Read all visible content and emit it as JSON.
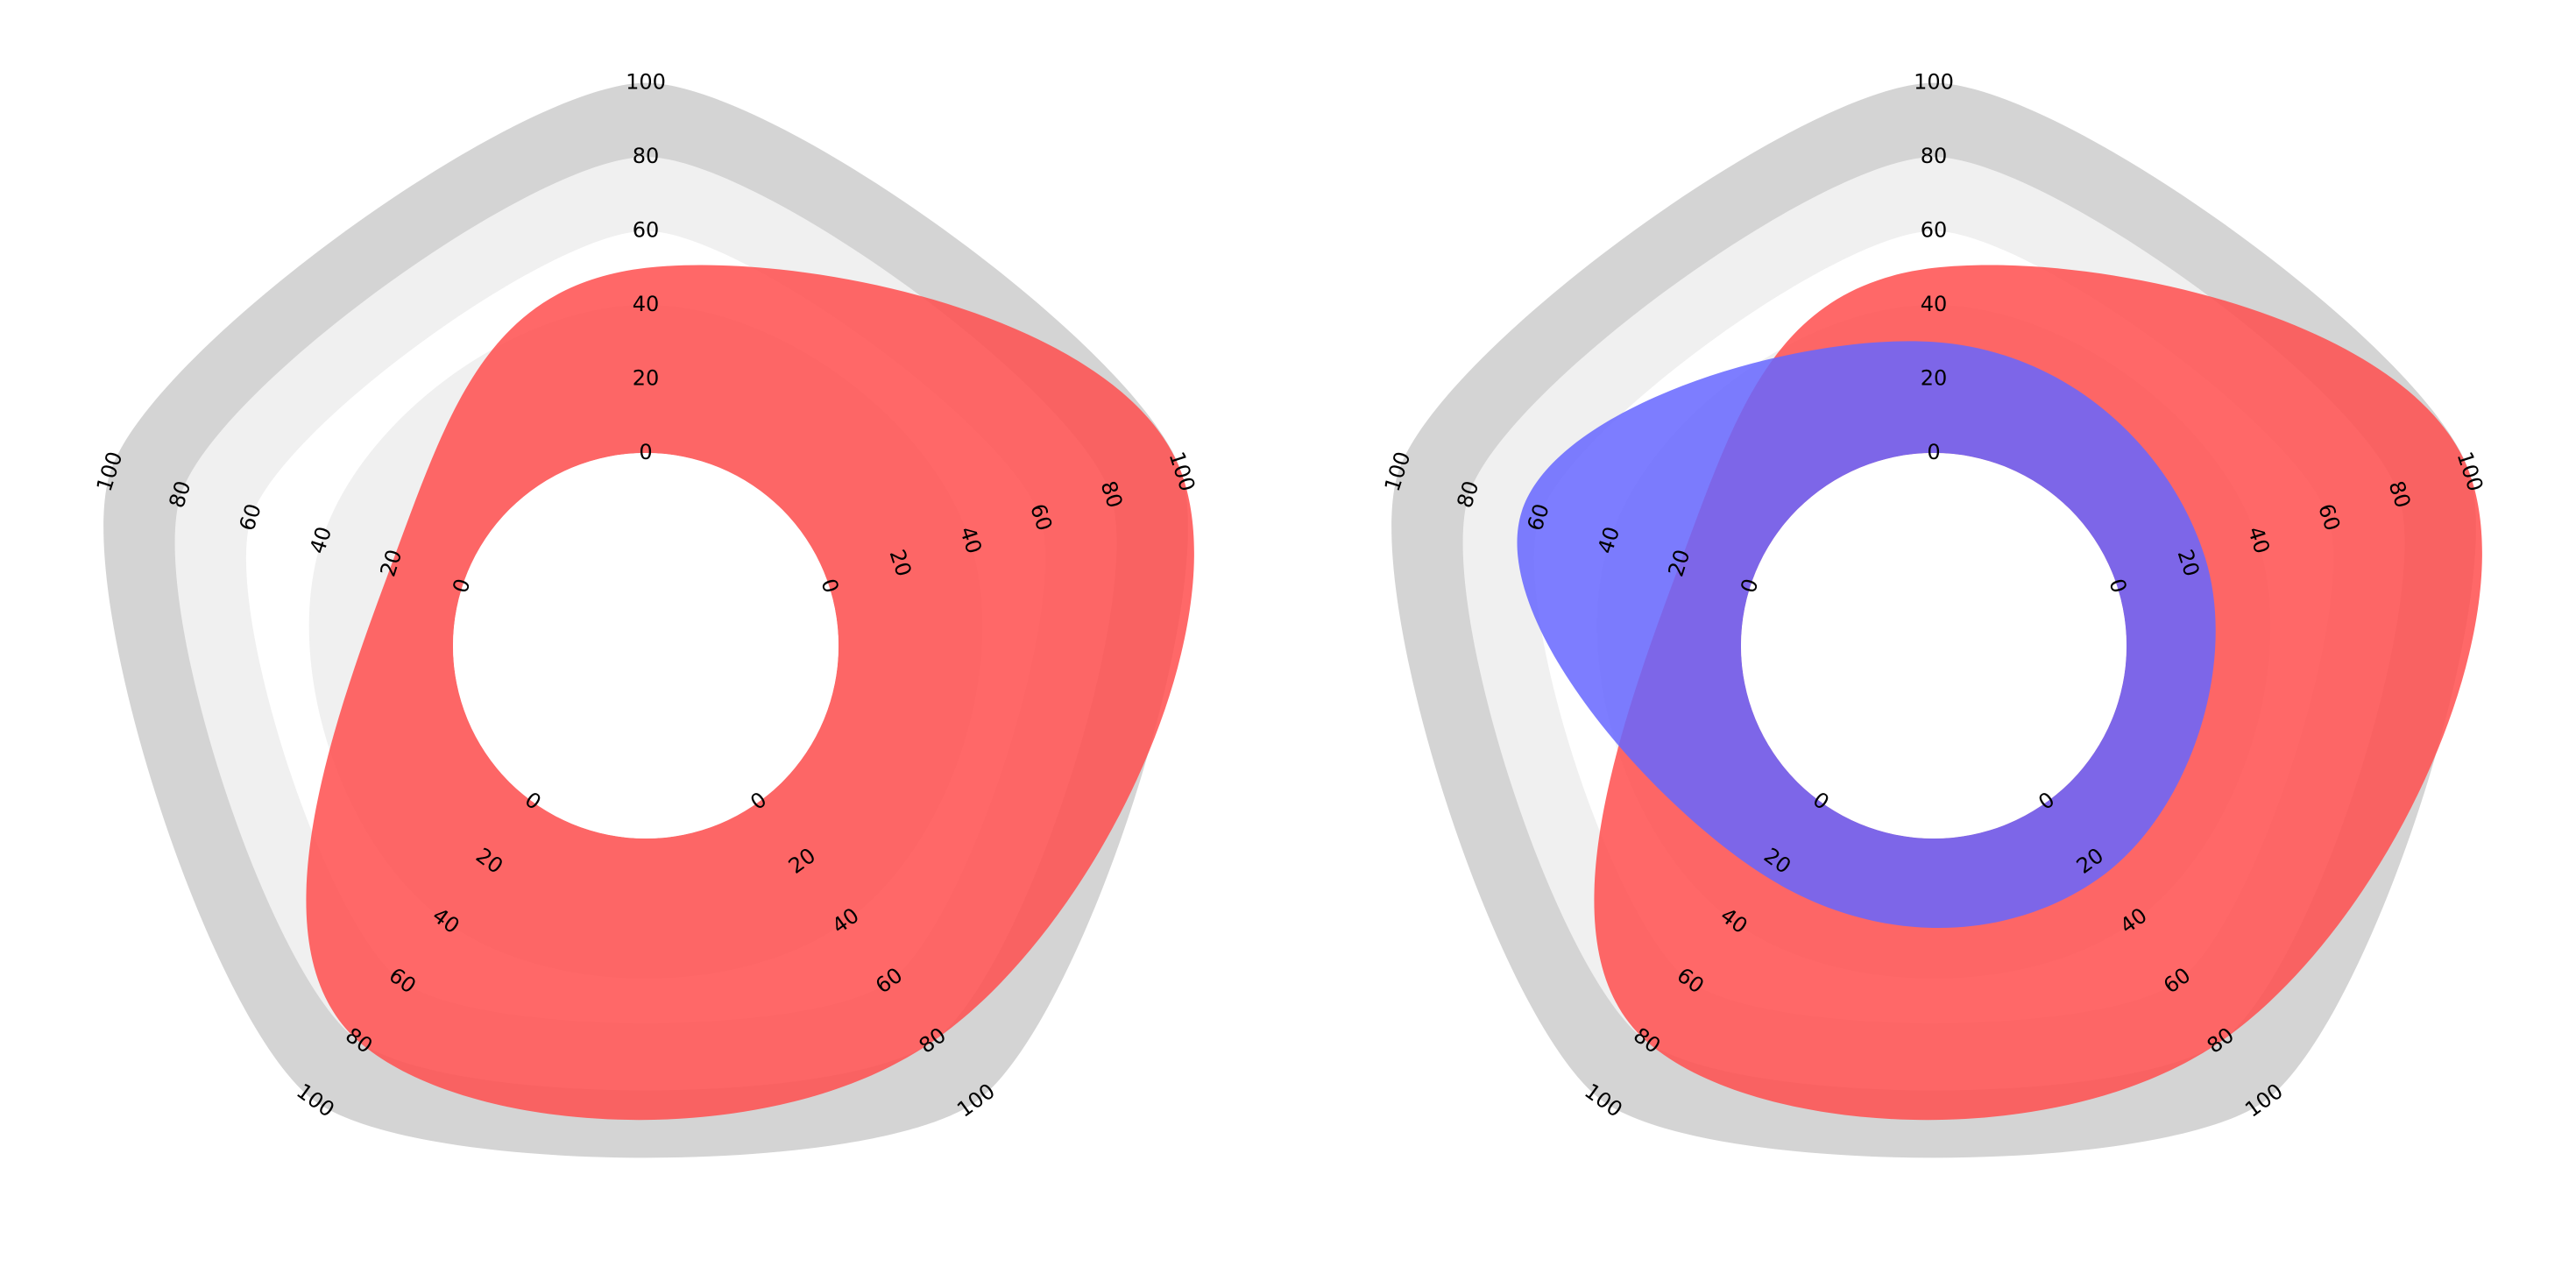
{
  "chart_data": [
    {
      "type": "radar",
      "axes": 5,
      "rlim": [
        0,
        100
      ],
      "ticks": [
        0,
        20,
        40,
        60,
        80,
        100
      ],
      "axis_tick_labels": [
        [
          "0",
          "20",
          "40",
          "60",
          "80",
          "100"
        ],
        [
          "0",
          "20",
          "40",
          "60",
          "80",
          "100"
        ],
        [
          "0",
          "20",
          "40",
          "60",
          "80",
          "100"
        ],
        [
          "0",
          "20",
          "40",
          "60",
          "80",
          "100"
        ],
        [
          "0",
          "20",
          "40",
          "60",
          "80",
          "100"
        ]
      ],
      "background_bands": {
        "colors": [
          "#ffffff",
          "#f0f0f0",
          "#d4d4d4"
        ]
      },
      "series": [
        {
          "values": [
            50,
            100,
            80,
            80,
            20
          ],
          "color": "#ff4d4d"
        }
      ]
    },
    {
      "type": "radar",
      "axes": 5,
      "rlim": [
        0,
        100
      ],
      "ticks": [
        0,
        20,
        40,
        60,
        80,
        100
      ],
      "axis_tick_labels": [
        [
          "0",
          "20",
          "40",
          "60",
          "80",
          "100"
        ],
        [
          "0",
          "20",
          "40",
          "60",
          "80",
          "100"
        ],
        [
          "0",
          "20",
          "40",
          "60",
          "80",
          "100"
        ],
        [
          "0",
          "20",
          "40",
          "60",
          "80",
          "100"
        ],
        [
          "0",
          "20",
          "40",
          "60",
          "80",
          "100"
        ]
      ],
      "background_bands": {
        "colors": [
          "#ffffff",
          "#f0f0f0",
          "#d4d4d4"
        ]
      },
      "series": [
        {
          "values": [
            50,
            100,
            80,
            80,
            20
          ],
          "color": "#ff4d4d"
        },
        {
          "values": [
            30,
            25,
            25,
            25,
            65
          ],
          "color": "#6666ff"
        }
      ]
    }
  ]
}
